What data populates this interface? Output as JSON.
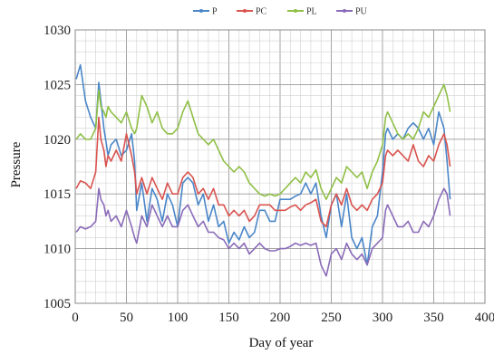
{
  "chart_data": {
    "type": "line",
    "title": "",
    "xlabel": "Day of year",
    "ylabel": "Pressure",
    "xlim": [
      0,
      400
    ],
    "ylim": [
      1005,
      1030
    ],
    "xticks": [
      0,
      50,
      100,
      150,
      200,
      250,
      300,
      350,
      400
    ],
    "yticks": [
      1005,
      1010,
      1015,
      1020,
      1025,
      1030
    ],
    "grid": true,
    "legend_position": "top-center",
    "series": [
      {
        "name": "P",
        "color": "#4a86c8",
        "points": [
          [
            1,
            1025.5
          ],
          [
            5,
            1026.8
          ],
          [
            10,
            1023.5
          ],
          [
            15,
            1022
          ],
          [
            20,
            1021
          ],
          [
            23,
            1025.2
          ],
          [
            25,
            1023.5
          ],
          [
            28,
            1021
          ],
          [
            30,
            1019.8
          ],
          [
            32,
            1018.5
          ],
          [
            35,
            1019.5
          ],
          [
            40,
            1020
          ],
          [
            45,
            1018.5
          ],
          [
            50,
            1019
          ],
          [
            55,
            1020.5
          ],
          [
            58,
            1018
          ],
          [
            60,
            1013.5
          ],
          [
            65,
            1016
          ],
          [
            70,
            1012.5
          ],
          [
            75,
            1015.5
          ],
          [
            80,
            1014.5
          ],
          [
            85,
            1012.5
          ],
          [
            90,
            1015
          ],
          [
            95,
            1014
          ],
          [
            100,
            1012
          ],
          [
            105,
            1016
          ],
          [
            110,
            1016.5
          ],
          [
            115,
            1016
          ],
          [
            120,
            1014
          ],
          [
            125,
            1015
          ],
          [
            130,
            1012.5
          ],
          [
            135,
            1014
          ],
          [
            140,
            1012
          ],
          [
            145,
            1012.5
          ],
          [
            150,
            1010.5
          ],
          [
            155,
            1011.5
          ],
          [
            160,
            1010.8
          ],
          [
            165,
            1012
          ],
          [
            170,
            1011
          ],
          [
            175,
            1011.5
          ],
          [
            180,
            1013.5
          ],
          [
            185,
            1013.5
          ],
          [
            190,
            1012.5
          ],
          [
            195,
            1012.5
          ],
          [
            200,
            1014.5
          ],
          [
            205,
            1014.5
          ],
          [
            210,
            1014.5
          ],
          [
            215,
            1014.8
          ],
          [
            220,
            1015
          ],
          [
            225,
            1016
          ],
          [
            230,
            1015
          ],
          [
            235,
            1016
          ],
          [
            240,
            1013
          ],
          [
            245,
            1011
          ],
          [
            250,
            1014
          ],
          [
            255,
            1015
          ],
          [
            260,
            1012
          ],
          [
            265,
            1015
          ],
          [
            270,
            1011
          ],
          [
            275,
            1010
          ],
          [
            280,
            1011
          ],
          [
            285,
            1008.5
          ],
          [
            290,
            1012
          ],
          [
            295,
            1013
          ],
          [
            300,
            1017
          ],
          [
            303,
            1020.5
          ],
          [
            305,
            1021
          ],
          [
            310,
            1020
          ],
          [
            315,
            1020.5
          ],
          [
            320,
            1020
          ],
          [
            325,
            1021
          ],
          [
            330,
            1021.5
          ],
          [
            335,
            1021
          ],
          [
            340,
            1020
          ],
          [
            345,
            1021
          ],
          [
            350,
            1019.5
          ],
          [
            355,
            1022.5
          ],
          [
            360,
            1021
          ],
          [
            363,
            1018
          ],
          [
            366,
            1014.5
          ]
        ]
      },
      {
        "name": "PC",
        "color": "#d9534f",
        "points": [
          [
            1,
            1015.5
          ],
          [
            5,
            1016.2
          ],
          [
            10,
            1016
          ],
          [
            15,
            1015.5
          ],
          [
            20,
            1017
          ],
          [
            23,
            1022
          ],
          [
            25,
            1020
          ],
          [
            28,
            1019
          ],
          [
            30,
            1017.5
          ],
          [
            32,
            1018.5
          ],
          [
            35,
            1018
          ],
          [
            40,
            1019
          ],
          [
            45,
            1018
          ],
          [
            50,
            1020.5
          ],
          [
            55,
            1018.5
          ],
          [
            58,
            1017
          ],
          [
            60,
            1015
          ],
          [
            65,
            1016.5
          ],
          [
            70,
            1015
          ],
          [
            75,
            1016.5
          ],
          [
            80,
            1015.5
          ],
          [
            85,
            1014.5
          ],
          [
            90,
            1016
          ],
          [
            95,
            1015
          ],
          [
            100,
            1015
          ],
          [
            105,
            1016.5
          ],
          [
            110,
            1017
          ],
          [
            115,
            1016.5
          ],
          [
            120,
            1015
          ],
          [
            125,
            1015.5
          ],
          [
            130,
            1014.5
          ],
          [
            135,
            1015.5
          ],
          [
            140,
            1014
          ],
          [
            145,
            1014
          ],
          [
            150,
            1013
          ],
          [
            155,
            1013.5
          ],
          [
            160,
            1013
          ],
          [
            165,
            1013.5
          ],
          [
            170,
            1012.5
          ],
          [
            175,
            1013
          ],
          [
            180,
            1014
          ],
          [
            185,
            1014
          ],
          [
            190,
            1014
          ],
          [
            195,
            1013.5
          ],
          [
            200,
            1013.5
          ],
          [
            205,
            1013.5
          ],
          [
            210,
            1013.8
          ],
          [
            215,
            1014
          ],
          [
            220,
            1013.5
          ],
          [
            225,
            1014
          ],
          [
            230,
            1014.2
          ],
          [
            235,
            1014.5
          ],
          [
            240,
            1012.5
          ],
          [
            245,
            1012
          ],
          [
            250,
            1014
          ],
          [
            255,
            1015
          ],
          [
            260,
            1014
          ],
          [
            265,
            1015.5
          ],
          [
            270,
            1014
          ],
          [
            275,
            1013.5
          ],
          [
            280,
            1014
          ],
          [
            285,
            1013.5
          ],
          [
            290,
            1014.5
          ],
          [
            295,
            1015
          ],
          [
            300,
            1016
          ],
          [
            303,
            1018.5
          ],
          [
            305,
            1019
          ],
          [
            310,
            1018.5
          ],
          [
            315,
            1019
          ],
          [
            320,
            1018.5
          ],
          [
            325,
            1018
          ],
          [
            330,
            1019.5
          ],
          [
            335,
            1018
          ],
          [
            340,
            1017.5
          ],
          [
            345,
            1018.5
          ],
          [
            350,
            1018
          ],
          [
            355,
            1019.5
          ],
          [
            360,
            1020.5
          ],
          [
            363,
            1019.5
          ],
          [
            366,
            1017.5
          ]
        ]
      },
      {
        "name": "PL",
        "color": "#8fbf46",
        "points": [
          [
            1,
            1020
          ],
          [
            5,
            1020.5
          ],
          [
            10,
            1020
          ],
          [
            15,
            1020
          ],
          [
            20,
            1021
          ],
          [
            23,
            1024.5
          ],
          [
            25,
            1023
          ],
          [
            28,
            1022.5
          ],
          [
            30,
            1022
          ],
          [
            32,
            1023
          ],
          [
            35,
            1022.5
          ],
          [
            40,
            1022
          ],
          [
            45,
            1021.5
          ],
          [
            50,
            1022.5
          ],
          [
            55,
            1021
          ],
          [
            58,
            1020.5
          ],
          [
            60,
            1021
          ],
          [
            65,
            1024
          ],
          [
            70,
            1023
          ],
          [
            75,
            1021.5
          ],
          [
            80,
            1022.5
          ],
          [
            85,
            1021
          ],
          [
            90,
            1020.5
          ],
          [
            95,
            1020.5
          ],
          [
            100,
            1021
          ],
          [
            105,
            1022.5
          ],
          [
            110,
            1023.5
          ],
          [
            115,
            1022
          ],
          [
            120,
            1020.5
          ],
          [
            125,
            1020
          ],
          [
            130,
            1019.5
          ],
          [
            135,
            1020
          ],
          [
            140,
            1019
          ],
          [
            145,
            1018
          ],
          [
            150,
            1017.5
          ],
          [
            155,
            1017
          ],
          [
            160,
            1017.5
          ],
          [
            165,
            1017
          ],
          [
            170,
            1016
          ],
          [
            175,
            1015.5
          ],
          [
            180,
            1015
          ],
          [
            185,
            1014.8
          ],
          [
            190,
            1015
          ],
          [
            195,
            1014.8
          ],
          [
            200,
            1015
          ],
          [
            205,
            1015.5
          ],
          [
            210,
            1016
          ],
          [
            215,
            1016.5
          ],
          [
            220,
            1016
          ],
          [
            225,
            1017
          ],
          [
            230,
            1016.5
          ],
          [
            235,
            1017.2
          ],
          [
            240,
            1015.5
          ],
          [
            245,
            1014.5
          ],
          [
            250,
            1015.5
          ],
          [
            255,
            1016.5
          ],
          [
            260,
            1016
          ],
          [
            265,
            1017.5
          ],
          [
            270,
            1017
          ],
          [
            275,
            1016.5
          ],
          [
            280,
            1017
          ],
          [
            285,
            1015.5
          ],
          [
            290,
            1017
          ],
          [
            295,
            1018
          ],
          [
            300,
            1019.5
          ],
          [
            303,
            1022
          ],
          [
            305,
            1022.5
          ],
          [
            310,
            1021.5
          ],
          [
            315,
            1020.5
          ],
          [
            320,
            1020
          ],
          [
            325,
            1020.5
          ],
          [
            330,
            1020
          ],
          [
            335,
            1021
          ],
          [
            340,
            1022.5
          ],
          [
            345,
            1022
          ],
          [
            350,
            1023
          ],
          [
            355,
            1024
          ],
          [
            360,
            1025
          ],
          [
            363,
            1024
          ],
          [
            366,
            1022.5
          ]
        ]
      },
      {
        "name": "PU",
        "color": "#8a6bb8",
        "points": [
          [
            1,
            1011.5
          ],
          [
            5,
            1012
          ],
          [
            10,
            1011.8
          ],
          [
            15,
            1012
          ],
          [
            20,
            1012.5
          ],
          [
            23,
            1015.5
          ],
          [
            25,
            1014.5
          ],
          [
            28,
            1014
          ],
          [
            30,
            1013
          ],
          [
            32,
            1013.5
          ],
          [
            35,
            1012.5
          ],
          [
            40,
            1013
          ],
          [
            45,
            1012
          ],
          [
            50,
            1013.5
          ],
          [
            55,
            1012
          ],
          [
            58,
            1011
          ],
          [
            60,
            1010.5
          ],
          [
            65,
            1013
          ],
          [
            70,
            1012
          ],
          [
            75,
            1014
          ],
          [
            80,
            1013
          ],
          [
            85,
            1012
          ],
          [
            90,
            1013
          ],
          [
            95,
            1012
          ],
          [
            100,
            1012
          ],
          [
            105,
            1013.5
          ],
          [
            110,
            1014
          ],
          [
            115,
            1013
          ],
          [
            120,
            1012
          ],
          [
            125,
            1012.5
          ],
          [
            130,
            1011.5
          ],
          [
            135,
            1011.5
          ],
          [
            140,
            1011
          ],
          [
            145,
            1010.8
          ],
          [
            150,
            1010
          ],
          [
            155,
            1010.5
          ],
          [
            160,
            1010
          ],
          [
            165,
            1010.5
          ],
          [
            170,
            1009.5
          ],
          [
            175,
            1010
          ],
          [
            180,
            1010.5
          ],
          [
            185,
            1010
          ],
          [
            190,
            1009.8
          ],
          [
            195,
            1009.8
          ],
          [
            200,
            1010
          ],
          [
            205,
            1010
          ],
          [
            210,
            1010.2
          ],
          [
            215,
            1010.5
          ],
          [
            220,
            1010.3
          ],
          [
            225,
            1010.5
          ],
          [
            230,
            1010.3
          ],
          [
            235,
            1010.5
          ],
          [
            240,
            1008.5
          ],
          [
            245,
            1007.5
          ],
          [
            250,
            1009.5
          ],
          [
            255,
            1010
          ],
          [
            260,
            1009
          ],
          [
            265,
            1010.5
          ],
          [
            270,
            1009.5
          ],
          [
            275,
            1009
          ],
          [
            280,
            1009.5
          ],
          [
            285,
            1008.5
          ],
          [
            290,
            1010
          ],
          [
            295,
            1010.5
          ],
          [
            300,
            1011
          ],
          [
            303,
            1013.5
          ],
          [
            305,
            1014
          ],
          [
            310,
            1013
          ],
          [
            315,
            1012
          ],
          [
            320,
            1012
          ],
          [
            325,
            1012.5
          ],
          [
            330,
            1011.5
          ],
          [
            335,
            1011.5
          ],
          [
            340,
            1012.5
          ],
          [
            345,
            1012
          ],
          [
            350,
            1013
          ],
          [
            355,
            1014.5
          ],
          [
            360,
            1015.5
          ],
          [
            363,
            1015
          ],
          [
            366,
            1013
          ]
        ]
      }
    ]
  }
}
